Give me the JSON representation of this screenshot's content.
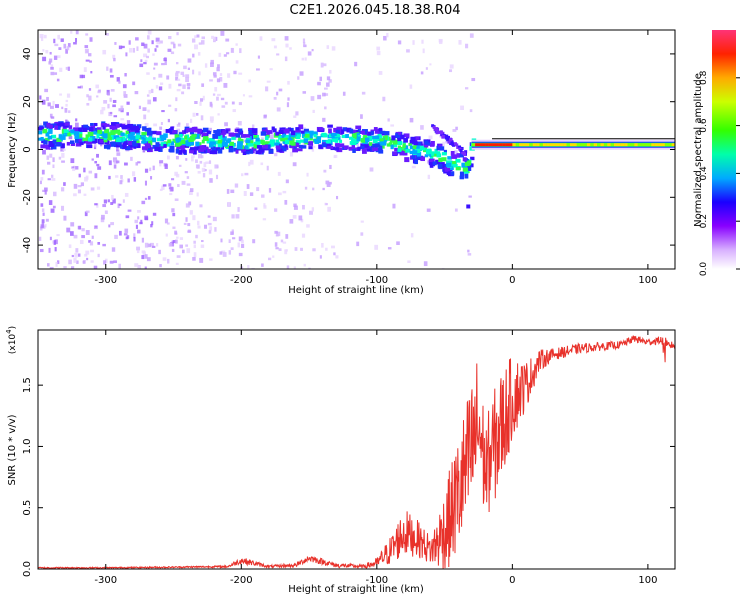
{
  "title": "C2E1.2026.045.18.38.R04",
  "colors": {
    "signal": "#e8312a",
    "axis": "#000000"
  },
  "chart_data": [
    {
      "type": "heatmap",
      "xlabel": "Height of straight line (km)",
      "ylabel": "Frequency (Hz)",
      "xlim": [
        -350,
        120
      ],
      "ylim": [
        -50,
        50
      ],
      "xticks": [
        -300,
        -200,
        -100,
        0,
        100
      ],
      "yticks": [
        -40,
        -20,
        0,
        20,
        40
      ],
      "ridge": {
        "x": [
          -350,
          -300,
          -250,
          -200,
          -150,
          -100,
          -60,
          -35,
          -30,
          0,
          50,
          80,
          100,
          120
        ],
        "y": [
          6,
          6,
          4,
          3,
          5,
          4,
          -2,
          -8,
          2,
          2,
          2,
          2.5,
          2,
          2
        ]
      },
      "colorbar": {
        "label": "Normalized spectral amplitude",
        "range": [
          0,
          1
        ],
        "ticks": [
          0.0,
          0.2,
          0.4,
          0.6,
          0.8
        ]
      }
    },
    {
      "type": "line",
      "xlabel": "Height of straight line (km)",
      "ylabel": "SNR (10 * v/v)",
      "scale_label": "(x10",
      "scale_exp": "4",
      "scale_close": ")",
      "xlim": [
        -350,
        120
      ],
      "ylim": [
        0,
        19500
      ],
      "xticks": [
        -300,
        -200,
        -100,
        0,
        100
      ],
      "yticks": [
        0.0,
        0.5,
        1.0,
        1.5
      ],
      "series": [
        {
          "name": "SNR",
          "x": [
            -350,
            -300,
            -250,
            -210,
            -200,
            -180,
            -160,
            -150,
            -130,
            -110,
            -100,
            -90,
            -80,
            -70,
            -60,
            -50,
            -40,
            -30,
            -25,
            -20,
            -10,
            0,
            10,
            20,
            30,
            50,
            80,
            90,
            100,
            110,
            113,
            116,
            120
          ],
          "y": [
            100,
            100,
            150,
            200,
            700,
            200,
            300,
            900,
            300,
            200,
            500,
            1500,
            3000,
            2500,
            1500,
            3000,
            6000,
            9500,
            12000,
            8000,
            11000,
            14000,
            15000,
            17000,
            17500,
            18000,
            18300,
            18800,
            18500,
            18700,
            17700,
            18300,
            18200
          ],
          "spread": [
            50,
            50,
            60,
            80,
            300,
            100,
            150,
            300,
            200,
            150,
            400,
            1200,
            2000,
            1500,
            1200,
            3500,
            5000,
            6000,
            6000,
            4000,
            5000,
            3500,
            2000,
            900,
            500,
            400,
            300,
            300,
            300,
            300,
            1200,
            300,
            300
          ]
        }
      ]
    }
  ]
}
